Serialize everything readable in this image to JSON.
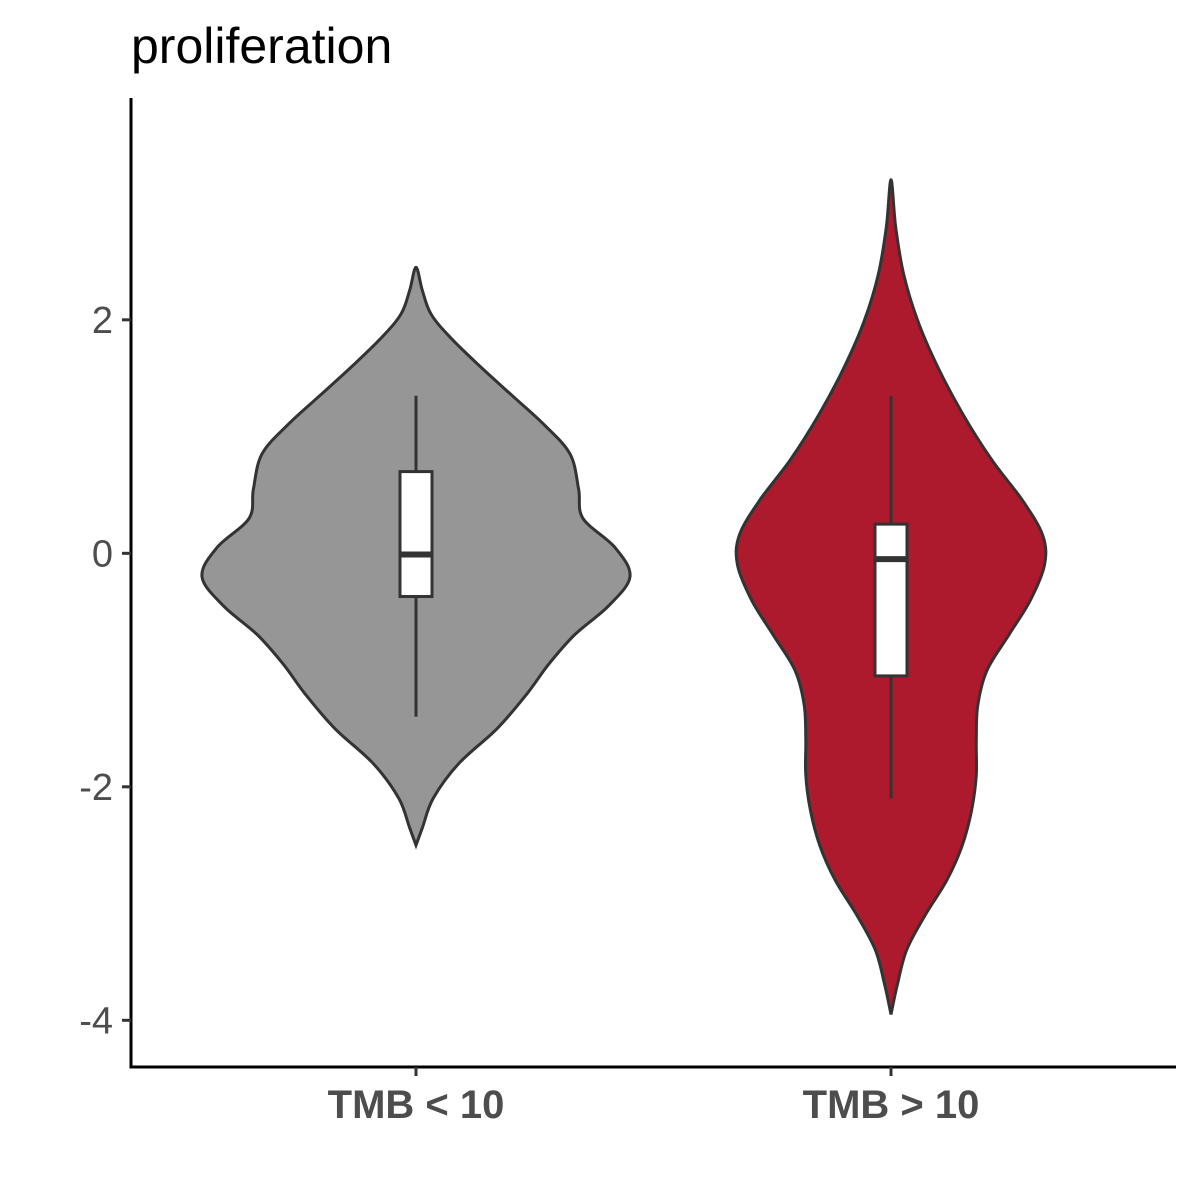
{
  "chart_data": {
    "type": "violin",
    "title": "proliferation",
    "xlabel": "",
    "ylabel": "",
    "ylim": [
      -4.4,
      3.9
    ],
    "yticks": [
      -4,
      -2,
      0,
      2
    ],
    "ytick_labels": [
      "-4",
      "-2",
      "0",
      "2"
    ],
    "categories": [
      "TMB < 10",
      "TMB > 10"
    ],
    "grid": false,
    "legend": "none",
    "series": [
      {
        "category": "TMB < 10",
        "color": "#969696",
        "box": {
          "whisker_low": -1.4,
          "q1": -0.37,
          "median": -0.01,
          "q3": 0.7,
          "whisker_high": 1.35
        },
        "violin_range": [
          -2.5,
          2.45
        ],
        "density_profile": [
          {
            "y": -2.5,
            "w": 0.0
          },
          {
            "y": -2.35,
            "w": 0.03
          },
          {
            "y": -2.1,
            "w": 0.08
          },
          {
            "y": -1.8,
            "w": 0.2
          },
          {
            "y": -1.5,
            "w": 0.38
          },
          {
            "y": -1.2,
            "w": 0.52
          },
          {
            "y": -0.95,
            "w": 0.62
          },
          {
            "y": -0.7,
            "w": 0.74
          },
          {
            "y": -0.45,
            "w": 0.9
          },
          {
            "y": -0.2,
            "w": 1.0
          },
          {
            "y": 0.05,
            "w": 0.93
          },
          {
            "y": 0.3,
            "w": 0.78
          },
          {
            "y": 0.55,
            "w": 0.76
          },
          {
            "y": 0.85,
            "w": 0.72
          },
          {
            "y": 1.1,
            "w": 0.6
          },
          {
            "y": 1.35,
            "w": 0.45
          },
          {
            "y": 1.6,
            "w": 0.3
          },
          {
            "y": 1.85,
            "w": 0.16
          },
          {
            "y": 2.05,
            "w": 0.07
          },
          {
            "y": 2.25,
            "w": 0.03
          },
          {
            "y": 2.45,
            "w": 0.0
          }
        ]
      },
      {
        "category": "TMB > 10",
        "color": "#ae1a2d",
        "box": {
          "whisker_low": -2.1,
          "q1": -1.05,
          "median": -0.05,
          "q3": 0.25,
          "whisker_high": 1.35
        },
        "violin_range": [
          -3.95,
          3.2
        ],
        "density_profile": [
          {
            "y": -3.95,
            "w": 0.0
          },
          {
            "y": -3.7,
            "w": 0.04
          },
          {
            "y": -3.4,
            "w": 0.1
          },
          {
            "y": -3.1,
            "w": 0.22
          },
          {
            "y": -2.8,
            "w": 0.36
          },
          {
            "y": -2.5,
            "w": 0.46
          },
          {
            "y": -2.2,
            "w": 0.52
          },
          {
            "y": -1.9,
            "w": 0.55
          },
          {
            "y": -1.6,
            "w": 0.55
          },
          {
            "y": -1.3,
            "w": 0.56
          },
          {
            "y": -1.0,
            "w": 0.62
          },
          {
            "y": -0.7,
            "w": 0.76
          },
          {
            "y": -0.4,
            "w": 0.9
          },
          {
            "y": -0.1,
            "w": 0.99
          },
          {
            "y": 0.15,
            "w": 0.98
          },
          {
            "y": 0.45,
            "w": 0.85
          },
          {
            "y": 0.8,
            "w": 0.65
          },
          {
            "y": 1.2,
            "w": 0.46
          },
          {
            "y": 1.6,
            "w": 0.3
          },
          {
            "y": 2.0,
            "w": 0.17
          },
          {
            "y": 2.4,
            "w": 0.08
          },
          {
            "y": 2.8,
            "w": 0.03
          },
          {
            "y": 3.2,
            "w": 0.0
          }
        ]
      }
    ]
  }
}
